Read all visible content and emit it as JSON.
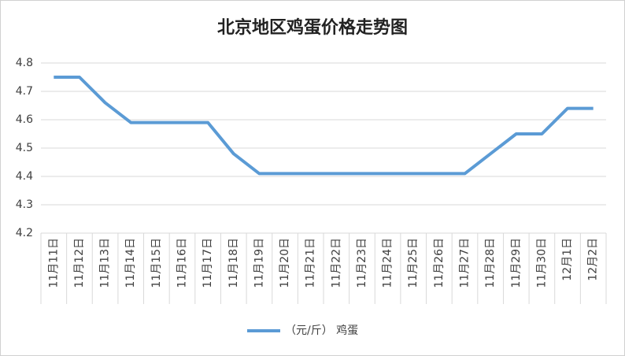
{
  "chart_data": {
    "type": "line",
    "title": "北京地区鸡蛋价格走势图",
    "categories": [
      "11月11日",
      "11月12日",
      "11月13日",
      "11月14日",
      "11月15日",
      "11月16日",
      "11月17日",
      "11月18日",
      "11月19日",
      "11月20日",
      "11月21日",
      "11月22日",
      "11月23日",
      "11月24日",
      "11月25日",
      "11月26日",
      "11月27日",
      "11月28日",
      "11月29日",
      "11月30日",
      "12月1日",
      "12月2日"
    ],
    "series": [
      {
        "name": "（元/斤） 鸡蛋",
        "color": "#5b9bd5",
        "values": [
          4.75,
          4.75,
          4.66,
          4.59,
          4.59,
          4.59,
          4.59,
          4.48,
          4.41,
          4.41,
          4.41,
          4.41,
          4.41,
          4.41,
          4.41,
          4.41,
          4.41,
          4.48,
          4.55,
          4.55,
          4.64,
          4.64
        ]
      }
    ],
    "ylim": [
      4.2,
      4.8
    ],
    "yticks": [
      4.2,
      4.3,
      4.4,
      4.5,
      4.6,
      4.7,
      4.8
    ],
    "grid": true,
    "legend": "bottom"
  }
}
